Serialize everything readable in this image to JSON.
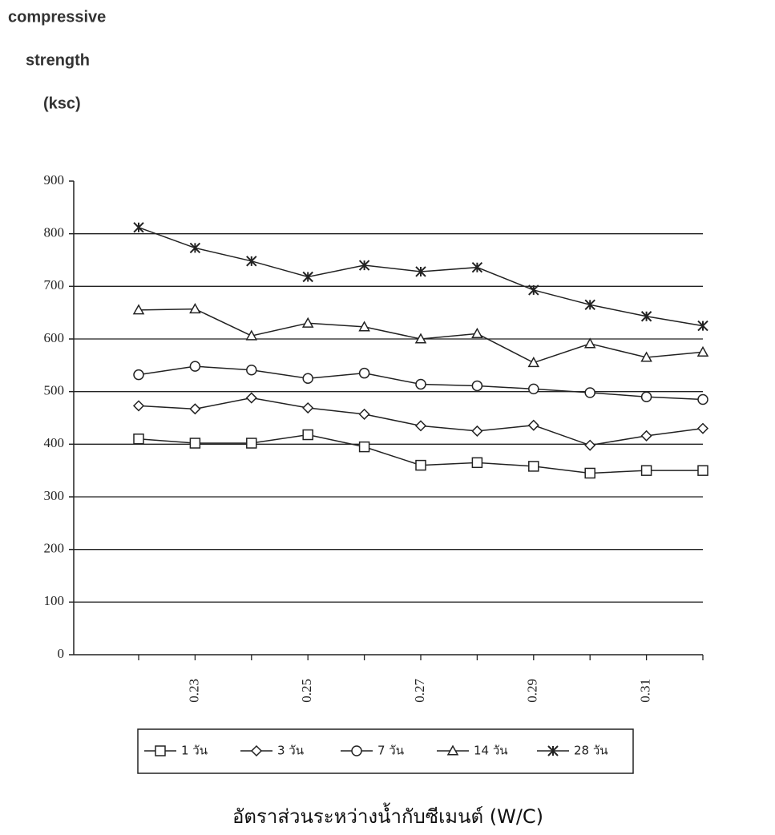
{
  "chart_data": {
    "type": "line",
    "y_label_lines": [
      "compressive",
      "strength",
      "(ksc)"
    ],
    "x_label": "อัตราส่วนระหว่างน้ำกับซีเมนต์ (W/C)",
    "categories": [
      null,
      "0.23",
      null,
      "0.25",
      null,
      "0.27",
      null,
      "0.29",
      null,
      "0.31",
      null
    ],
    "ylim": [
      0,
      900
    ],
    "yticks": [
      0,
      100,
      200,
      300,
      400,
      500,
      600,
      700,
      800,
      900
    ],
    "grid": true,
    "series": [
      {
        "name": "1 วัน",
        "color": "#222222",
        "marker": "square",
        "values": [
          410,
          402,
          402,
          418,
          395,
          360,
          365,
          358,
          345,
          350,
          350
        ]
      },
      {
        "name": "3 วัน",
        "color": "#222222",
        "marker": "diamond",
        "values": [
          473,
          467,
          488,
          469,
          457,
          435,
          425,
          436,
          398,
          416,
          430
        ]
      },
      {
        "name": "7 วัน",
        "color": "#222222",
        "marker": "circle",
        "values": [
          532,
          548,
          541,
          525,
          535,
          514,
          511,
          505,
          498,
          490,
          485
        ]
      },
      {
        "name": "14 วัน",
        "color": "#222222",
        "marker": "triangle",
        "values": [
          655,
          657,
          606,
          630,
          623,
          600,
          610,
          555,
          591,
          565,
          575
        ]
      },
      {
        "name": "28 วัน",
        "color": "#222222",
        "marker": "asterisk",
        "values": [
          812,
          773,
          748,
          718,
          740,
          728,
          736,
          693,
          665,
          643,
          625
        ]
      }
    ]
  }
}
